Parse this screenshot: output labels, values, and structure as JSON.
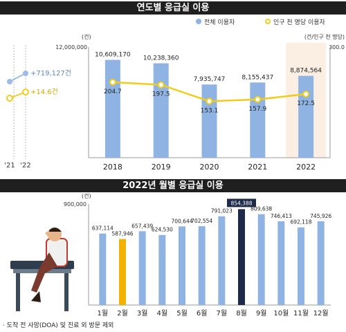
{
  "section1": {
    "title": "연도별 응급실 이용",
    "legend_bar": "전체 이용자",
    "legend_line": "인구 천 명당 이용자",
    "left_unit": "(건)",
    "right_unit": "(건/인구 천 명당)",
    "left_top": "12,000,000",
    "right_top": "300.0"
  },
  "mini": {
    "change_total": "+719,127건",
    "change_rate": "+14.6건",
    "years": [
      "'21",
      "'22"
    ]
  },
  "section2": {
    "title": "2022년 월별 응급실 이용",
    "unit": "(건)",
    "y_top": "900,000"
  },
  "footnote": "· 도착 전 사망(DOA) 및 진료 외 방문 제외",
  "chart_data": [
    {
      "type": "bar",
      "title": "연도별 응급실 이용",
      "categories": [
        "2018",
        "2019",
        "2020",
        "2021",
        "2022"
      ],
      "series": [
        {
          "name": "전체 이용자",
          "type": "bar",
          "axis": "left",
          "values": [
            10609170,
            10238360,
            7935747,
            8155437,
            8874564
          ],
          "labels": [
            "10,609,170",
            "10,238,360",
            "7,935,747",
            "8,155,437",
            "8,874,564"
          ]
        },
        {
          "name": "인구 천 명당 이용자",
          "type": "line",
          "axis": "right",
          "values": [
            204.7,
            197.5,
            153.1,
            157.9,
            172.5
          ],
          "labels": [
            "204.7",
            "197.5",
            "153.1",
            "157.9",
            "172.5"
          ]
        }
      ],
      "ylim": [
        0,
        12000000
      ],
      "y2lim": [
        0,
        300
      ],
      "highlight_category": "2022",
      "colors": {
        "bar": "#8fb4e3",
        "line": "#f2cc1a",
        "highlight_bg": "#fbeee2"
      }
    },
    {
      "type": "bar",
      "title": "2022년 월별 응급실 이용",
      "categories": [
        "1월",
        "2월",
        "3월",
        "4월",
        "5월",
        "6월",
        "7월",
        "8월",
        "9월",
        "10월",
        "11월",
        "12월"
      ],
      "values": [
        637114,
        587946,
        657439,
        624530,
        700644,
        702554,
        791023,
        854388,
        809638,
        746413,
        692118,
        745926
      ],
      "labels": [
        "637,114",
        "587,946",
        "657,439",
        "624,530",
        "700,644",
        "702,554",
        "791,023",
        "854,388",
        "809,638",
        "746,413",
        "692,118",
        "745,926"
      ],
      "ylim": [
        0,
        900000
      ],
      "highlight": {
        "min_category": "2월",
        "max_category": "8월"
      },
      "colors": {
        "bar": "#8fb4e3",
        "min": "#f2b300",
        "max": "#1e2a4a"
      }
    }
  ]
}
